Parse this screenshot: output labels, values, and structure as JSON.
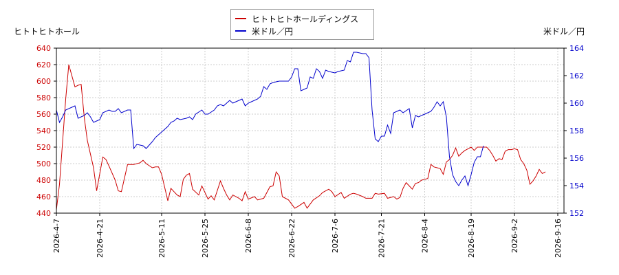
{
  "chart_data": {
    "type": "line",
    "y_left_label": "ヒトトヒトホール",
    "y_right_label": "米ドル／円",
    "y_left_range": [
      440,
      640
    ],
    "y_right_range": [
      152,
      164
    ],
    "y_left_ticks": [
      "440",
      "460",
      "480",
      "500",
      "520",
      "540",
      "560",
      "580",
      "600",
      "620",
      "640"
    ],
    "y_right_ticks": [
      "152",
      "154",
      "156",
      "158",
      "160",
      "162",
      "164"
    ],
    "x_range": [
      "2026-4-7",
      "2026-9-18"
    ],
    "x_ticks": [
      "2026-4-7",
      "2026-4-21",
      "2026-5-11",
      "2026-5-25",
      "2026-6-8",
      "2026-6-22",
      "2026-7-6",
      "2026-7-21",
      "2026-8-4",
      "2026-8-19",
      "2026-9-2",
      "2026-9-16"
    ],
    "grid": true,
    "legend_position": "top-center",
    "series": [
      {
        "name": "ヒトトヒトホールディングス",
        "axis": "left",
        "color": "#cc0000",
        "points": [
          [
            "2026-04-07",
            444
          ],
          [
            "2026-04-08",
            475
          ],
          [
            "2026-04-10",
            578
          ],
          [
            "2026-04-11",
            620
          ],
          [
            "2026-04-13",
            593
          ],
          [
            "2026-04-14",
            595
          ],
          [
            "2026-04-15",
            596
          ],
          [
            "2026-04-16",
            556
          ],
          [
            "2026-04-17",
            528
          ],
          [
            "2026-04-19",
            495
          ],
          [
            "2026-04-20",
            467
          ],
          [
            "2026-04-22",
            508
          ],
          [
            "2026-04-23",
            505
          ],
          [
            "2026-04-24",
            497
          ],
          [
            "2026-04-26",
            480
          ],
          [
            "2026-04-27",
            467
          ],
          [
            "2026-04-28",
            466
          ],
          [
            "2026-04-30",
            499
          ],
          [
            "2026-05-01",
            499
          ],
          [
            "2026-05-02",
            499
          ],
          [
            "2026-05-04",
            501
          ],
          [
            "2026-05-05",
            504
          ],
          [
            "2026-05-06",
            500
          ],
          [
            "2026-05-08",
            495
          ],
          [
            "2026-05-09",
            496
          ],
          [
            "2026-05-10",
            496
          ],
          [
            "2026-05-11",
            487
          ],
          [
            "2026-05-13",
            455
          ],
          [
            "2026-05-14",
            470
          ],
          [
            "2026-05-16",
            462
          ],
          [
            "2026-05-17",
            460
          ],
          [
            "2026-05-18",
            481
          ],
          [
            "2026-05-19",
            486
          ],
          [
            "2026-05-20",
            488
          ],
          [
            "2026-05-21",
            469
          ],
          [
            "2026-05-23",
            462
          ],
          [
            "2026-05-24",
            473
          ],
          [
            "2026-05-26",
            457
          ],
          [
            "2026-05-27",
            461
          ],
          [
            "2026-05-28",
            456
          ],
          [
            "2026-05-30",
            479
          ],
          [
            "2026-05-31",
            470
          ],
          [
            "2026-06-01",
            462
          ],
          [
            "2026-06-02",
            456
          ],
          [
            "2026-06-03",
            462
          ],
          [
            "2026-06-05",
            458
          ],
          [
            "2026-06-06",
            455
          ],
          [
            "2026-06-07",
            466
          ],
          [
            "2026-06-08",
            457
          ],
          [
            "2026-06-10",
            460
          ],
          [
            "2026-06-11",
            456
          ],
          [
            "2026-06-13",
            458
          ],
          [
            "2026-06-15",
            472
          ],
          [
            "2026-06-16",
            473
          ],
          [
            "2026-06-17",
            490
          ],
          [
            "2026-06-18",
            485
          ],
          [
            "2026-06-19",
            460
          ],
          [
            "2026-06-21",
            456
          ],
          [
            "2026-06-23",
            446
          ],
          [
            "2026-06-24",
            448
          ],
          [
            "2026-06-26",
            453
          ],
          [
            "2026-06-27",
            446
          ],
          [
            "2026-06-29",
            456
          ],
          [
            "2026-07-01",
            461
          ],
          [
            "2026-07-02",
            465
          ],
          [
            "2026-07-04",
            469
          ],
          [
            "2026-07-05",
            466
          ],
          [
            "2026-07-06",
            460
          ],
          [
            "2026-07-08",
            465
          ],
          [
            "2026-07-09",
            458
          ],
          [
            "2026-07-11",
            463
          ],
          [
            "2026-07-12",
            464
          ],
          [
            "2026-07-13",
            463
          ],
          [
            "2026-07-15",
            460
          ],
          [
            "2026-07-16",
            458
          ],
          [
            "2026-07-18",
            458
          ],
          [
            "2026-07-19",
            464
          ],
          [
            "2026-07-20",
            463
          ],
          [
            "2026-07-22",
            464
          ],
          [
            "2026-07-23",
            458
          ],
          [
            "2026-07-25",
            460
          ],
          [
            "2026-07-26",
            457
          ],
          [
            "2026-07-27",
            459
          ],
          [
            "2026-07-28",
            470
          ],
          [
            "2026-07-29",
            477
          ],
          [
            "2026-07-30",
            473
          ],
          [
            "2026-07-31",
            469
          ],
          [
            "2026-08-01",
            476
          ],
          [
            "2026-08-02",
            477
          ],
          [
            "2026-08-03",
            480
          ],
          [
            "2026-08-04",
            481
          ],
          [
            "2026-08-05",
            482
          ],
          [
            "2026-08-06",
            499
          ],
          [
            "2026-08-07",
            496
          ],
          [
            "2026-08-08",
            495
          ],
          [
            "2026-08-09",
            494
          ],
          [
            "2026-08-10",
            487
          ],
          [
            "2026-08-11",
            502
          ],
          [
            "2026-08-12",
            505
          ],
          [
            "2026-08-13",
            510
          ],
          [
            "2026-08-14",
            519
          ],
          [
            "2026-08-15",
            509
          ],
          [
            "2026-08-16",
            513
          ],
          [
            "2026-08-17",
            516
          ],
          [
            "2026-08-18",
            518
          ],
          [
            "2026-08-19",
            520
          ],
          [
            "2026-08-20",
            516
          ],
          [
            "2026-08-21",
            520
          ],
          [
            "2026-08-22",
            520
          ],
          [
            "2026-08-23",
            520
          ],
          [
            "2026-08-24",
            520
          ],
          [
            "2026-08-25",
            516
          ],
          [
            "2026-08-26",
            510
          ],
          [
            "2026-08-27",
            503
          ],
          [
            "2026-08-28",
            506
          ],
          [
            "2026-08-29",
            505
          ],
          [
            "2026-08-30",
            515
          ],
          [
            "2026-08-31",
            517
          ],
          [
            "2026-09-01",
            517
          ],
          [
            "2026-09-02",
            518
          ],
          [
            "2026-09-03",
            517
          ],
          [
            "2026-09-04",
            505
          ],
          [
            "2026-09-05",
            500
          ],
          [
            "2026-09-06",
            492
          ],
          [
            "2026-09-07",
            475
          ],
          [
            "2026-09-08",
            479
          ],
          [
            "2026-09-09",
            485
          ],
          [
            "2026-09-10",
            493
          ],
          [
            "2026-09-11",
            488
          ],
          [
            "2026-09-12",
            490
          ]
        ]
      },
      {
        "name": "米ドル／円",
        "axis": "right",
        "color": "#0000cc",
        "points": [
          [
            "2026-04-07",
            159.5
          ],
          [
            "2026-04-08",
            158.6
          ],
          [
            "2026-04-09",
            159.0
          ],
          [
            "2026-04-10",
            159.5
          ],
          [
            "2026-04-12",
            159.7
          ],
          [
            "2026-04-13",
            159.8
          ],
          [
            "2026-04-14",
            158.9
          ],
          [
            "2026-04-16",
            159.1
          ],
          [
            "2026-04-17",
            159.3
          ],
          [
            "2026-04-18",
            159.0
          ],
          [
            "2026-04-19",
            158.6
          ],
          [
            "2026-04-21",
            158.8
          ],
          [
            "2026-04-22",
            159.3
          ],
          [
            "2026-04-24",
            159.5
          ],
          [
            "2026-04-25",
            159.4
          ],
          [
            "2026-04-26",
            159.4
          ],
          [
            "2026-04-27",
            159.6
          ],
          [
            "2026-04-28",
            159.3
          ],
          [
            "2026-04-30",
            159.5
          ],
          [
            "2026-05-01",
            159.5
          ],
          [
            "2026-05-02",
            156.7
          ],
          [
            "2026-05-03",
            157.0
          ],
          [
            "2026-05-05",
            156.9
          ],
          [
            "2026-05-06",
            156.7
          ],
          [
            "2026-05-08",
            157.2
          ],
          [
            "2026-05-09",
            157.5
          ],
          [
            "2026-05-10",
            157.7
          ],
          [
            "2026-05-11",
            157.9
          ],
          [
            "2026-05-13",
            158.3
          ],
          [
            "2026-05-14",
            158.6
          ],
          [
            "2026-05-15",
            158.7
          ],
          [
            "2026-05-16",
            158.9
          ],
          [
            "2026-05-17",
            158.8
          ],
          [
            "2026-05-19",
            158.9
          ],
          [
            "2026-05-20",
            159.0
          ],
          [
            "2026-05-21",
            158.8
          ],
          [
            "2026-05-22",
            159.2
          ],
          [
            "2026-05-24",
            159.5
          ],
          [
            "2026-05-25",
            159.2
          ],
          [
            "2026-05-26",
            159.2
          ],
          [
            "2026-05-28",
            159.5
          ],
          [
            "2026-05-29",
            159.8
          ],
          [
            "2026-05-30",
            159.9
          ],
          [
            "2026-05-31",
            159.8
          ],
          [
            "2026-06-02",
            160.2
          ],
          [
            "2026-06-03",
            160.0
          ],
          [
            "2026-06-04",
            160.1
          ],
          [
            "2026-06-05",
            160.2
          ],
          [
            "2026-06-06",
            160.3
          ],
          [
            "2026-06-07",
            159.8
          ],
          [
            "2026-06-08",
            160.0
          ],
          [
            "2026-06-09",
            160.1
          ],
          [
            "2026-06-11",
            160.3
          ],
          [
            "2026-06-12",
            160.5
          ],
          [
            "2026-06-13",
            161.2
          ],
          [
            "2026-06-14",
            161.0
          ],
          [
            "2026-06-15",
            161.4
          ],
          [
            "2026-06-16",
            161.5
          ],
          [
            "2026-06-18",
            161.6
          ],
          [
            "2026-06-19",
            161.6
          ],
          [
            "2026-06-21",
            161.6
          ],
          [
            "2026-06-22",
            161.9
          ],
          [
            "2026-06-23",
            162.5
          ],
          [
            "2026-06-24",
            162.5
          ],
          [
            "2026-06-25",
            160.9
          ],
          [
            "2026-06-27",
            161.1
          ],
          [
            "2026-06-28",
            161.9
          ],
          [
            "2026-06-29",
            161.8
          ],
          [
            "2026-06-30",
            162.5
          ],
          [
            "2026-07-01",
            162.3
          ],
          [
            "2026-07-02",
            161.8
          ],
          [
            "2026-07-03",
            162.4
          ],
          [
            "2026-07-04",
            162.3
          ],
          [
            "2026-07-06",
            162.2
          ],
          [
            "2026-07-07",
            162.3
          ],
          [
            "2026-07-09",
            162.4
          ],
          [
            "2026-07-10",
            163.1
          ],
          [
            "2026-07-11",
            163.0
          ],
          [
            "2026-07-12",
            163.7
          ],
          [
            "2026-07-13",
            163.7
          ],
          [
            "2026-07-15",
            163.6
          ],
          [
            "2026-07-16",
            163.6
          ],
          [
            "2026-07-17",
            163.3
          ],
          [
            "2026-07-18",
            159.5
          ],
          [
            "2026-07-19",
            157.4
          ],
          [
            "2026-07-20",
            157.2
          ],
          [
            "2026-07-21",
            157.6
          ],
          [
            "2026-07-22",
            157.6
          ],
          [
            "2026-07-23",
            158.4
          ],
          [
            "2026-07-24",
            157.8
          ],
          [
            "2026-07-25",
            159.3
          ],
          [
            "2026-07-26",
            159.4
          ],
          [
            "2026-07-27",
            159.5
          ],
          [
            "2026-07-28",
            159.3
          ],
          [
            "2026-07-30",
            159.6
          ],
          [
            "2026-07-31",
            158.2
          ],
          [
            "2026-08-01",
            159.1
          ],
          [
            "2026-08-02",
            159.0
          ],
          [
            "2026-08-04",
            159.2
          ],
          [
            "2026-08-05",
            159.3
          ],
          [
            "2026-08-06",
            159.4
          ],
          [
            "2026-08-07",
            159.7
          ],
          [
            "2026-08-08",
            160.1
          ],
          [
            "2026-08-09",
            159.8
          ],
          [
            "2026-08-10",
            160.1
          ],
          [
            "2026-08-11",
            159.0
          ],
          [
            "2026-08-12",
            156.1
          ],
          [
            "2026-08-13",
            154.8
          ],
          [
            "2026-08-14",
            154.3
          ],
          [
            "2026-08-15",
            154.0
          ],
          [
            "2026-08-16",
            154.4
          ],
          [
            "2026-08-17",
            154.7
          ],
          [
            "2026-08-18",
            154.0
          ],
          [
            "2026-08-19",
            154.8
          ],
          [
            "2026-08-20",
            155.7
          ],
          [
            "2026-08-21",
            156.1
          ],
          [
            "2026-08-22",
            156.1
          ],
          [
            "2026-08-23",
            156.9
          ]
        ]
      }
    ]
  }
}
